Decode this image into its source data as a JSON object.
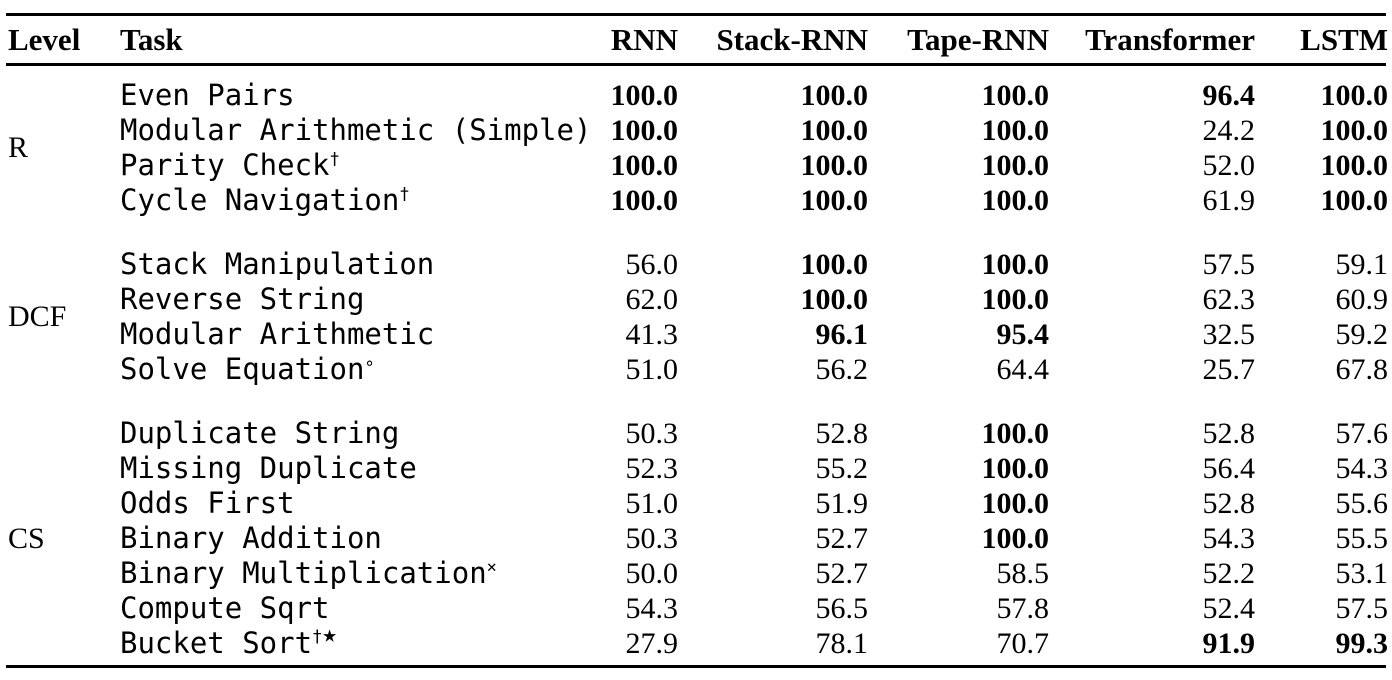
{
  "table": {
    "columns": [
      "Level",
      "Task",
      "RNN",
      "Stack-RNN",
      "Tape-RNN",
      "Transformer",
      "LSTM"
    ],
    "text_color": "#000000",
    "background_color": "#ffffff",
    "groups": [
      {
        "level": "R",
        "rows": [
          {
            "task": "Even Pairs",
            "sup": "",
            "values": [
              "100.0",
              "100.0",
              "100.0",
              "96.4",
              "100.0"
            ],
            "bold": [
              1,
              1,
              1,
              1,
              1
            ]
          },
          {
            "task": "Modular Arithmetic (Simple)",
            "sup": "",
            "values": [
              "100.0",
              "100.0",
              "100.0",
              "24.2",
              "100.0"
            ],
            "bold": [
              1,
              1,
              1,
              0,
              1
            ]
          },
          {
            "task": "Parity Check",
            "sup": "†",
            "values": [
              "100.0",
              "100.0",
              "100.0",
              "52.0",
              "100.0"
            ],
            "bold": [
              1,
              1,
              1,
              0,
              1
            ]
          },
          {
            "task": "Cycle Navigation",
            "sup": "†",
            "values": [
              "100.0",
              "100.0",
              "100.0",
              "61.9",
              "100.0"
            ],
            "bold": [
              1,
              1,
              1,
              0,
              1
            ]
          }
        ]
      },
      {
        "level": "DCF",
        "rows": [
          {
            "task": "Stack Manipulation",
            "sup": "",
            "values": [
              "56.0",
              "100.0",
              "100.0",
              "57.5",
              "59.1"
            ],
            "bold": [
              0,
              1,
              1,
              0,
              0
            ]
          },
          {
            "task": "Reverse String",
            "sup": "",
            "values": [
              "62.0",
              "100.0",
              "100.0",
              "62.3",
              "60.9"
            ],
            "bold": [
              0,
              1,
              1,
              0,
              0
            ]
          },
          {
            "task": "Modular Arithmetic",
            "sup": "",
            "values": [
              "41.3",
              "96.1",
              "95.4",
              "32.5",
              "59.2"
            ],
            "bold": [
              0,
              1,
              1,
              0,
              0
            ]
          },
          {
            "task": "Solve Equation",
            "sup": "∘",
            "values": [
              "51.0",
              "56.2",
              "64.4",
              "25.7",
              "67.8"
            ],
            "bold": [
              0,
              0,
              0,
              0,
              0
            ]
          }
        ]
      },
      {
        "level": "CS",
        "rows": [
          {
            "task": "Duplicate String",
            "sup": "",
            "values": [
              "50.3",
              "52.8",
              "100.0",
              "52.8",
              "57.6"
            ],
            "bold": [
              0,
              0,
              1,
              0,
              0
            ]
          },
          {
            "task": "Missing Duplicate",
            "sup": "",
            "values": [
              "52.3",
              "55.2",
              "100.0",
              "56.4",
              "54.3"
            ],
            "bold": [
              0,
              0,
              1,
              0,
              0
            ]
          },
          {
            "task": "Odds First",
            "sup": "",
            "values": [
              "51.0",
              "51.9",
              "100.0",
              "52.8",
              "55.6"
            ],
            "bold": [
              0,
              0,
              1,
              0,
              0
            ]
          },
          {
            "task": "Binary Addition",
            "sup": "",
            "values": [
              "50.3",
              "52.7",
              "100.0",
              "54.3",
              "55.5"
            ],
            "bold": [
              0,
              0,
              1,
              0,
              0
            ]
          },
          {
            "task": "Binary Multiplication",
            "sup": "×",
            "values": [
              "50.0",
              "52.7",
              "58.5",
              "52.2",
              "53.1"
            ],
            "bold": [
              0,
              0,
              0,
              0,
              0
            ]
          },
          {
            "task": "Compute Sqrt",
            "sup": "",
            "values": [
              "54.3",
              "56.5",
              "57.8",
              "52.4",
              "57.5"
            ],
            "bold": [
              0,
              0,
              0,
              0,
              0
            ]
          },
          {
            "task": "Bucket Sort",
            "sup": "†★",
            "values": [
              "27.9",
              "78.1",
              "70.7",
              "91.9",
              "99.3"
            ],
            "bold": [
              0,
              0,
              0,
              1,
              1
            ]
          }
        ]
      }
    ]
  }
}
